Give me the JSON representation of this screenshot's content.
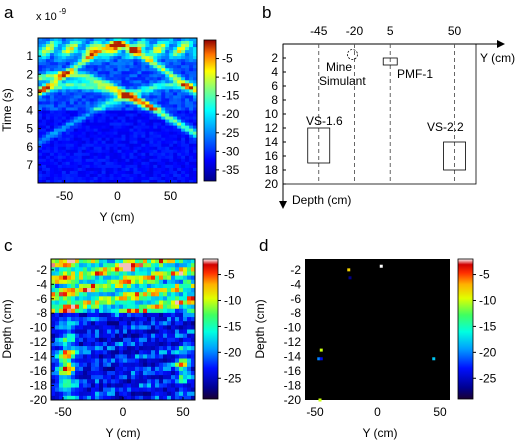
{
  "panels": {
    "a": {
      "letter": "a",
      "xlabel": "Y (cm)",
      "ylabel": "Time (s)",
      "exponent_base": "x 10",
      "exponent_power": "-9",
      "xticks": [
        "-50",
        "0",
        "50"
      ],
      "yticks": [
        "1",
        "2",
        "3",
        "4",
        "5",
        "6",
        "7"
      ],
      "colorbar_ticks": [
        "-5",
        "-10",
        "-15",
        "-20",
        "-25",
        "-30",
        "-35"
      ]
    },
    "b": {
      "letter": "b",
      "xlabel": "Y (cm)",
      "ylabel": "Depth (cm)",
      "y_positions": [
        "-45",
        "-20",
        "5",
        "50"
      ],
      "depth_ticks": [
        "2",
        "4",
        "6",
        "8",
        "10",
        "12",
        "14",
        "16",
        "18",
        "20"
      ],
      "labels": {
        "mine_line1": "Mine",
        "mine_line2": "Simulant",
        "pmf": "PMF-1",
        "vs16": "VS-1.6",
        "vs22": "VS-2.2"
      }
    },
    "c": {
      "letter": "c",
      "xlabel": "Y (cm)",
      "ylabel": "Depth (cm)",
      "xticks": [
        "-50",
        "0",
        "50"
      ],
      "yticks": [
        "-2",
        "-4",
        "-6",
        "-8",
        "-10",
        "-12",
        "-14",
        "-16",
        "-18",
        "-20"
      ],
      "colorbar_ticks": [
        "-5",
        "-10",
        "-15",
        "-20",
        "-25"
      ]
    },
    "d": {
      "letter": "d",
      "xlabel": "Y (cm)",
      "ylabel": "Depth (cm)",
      "xticks": [
        "-50",
        "0",
        "50"
      ],
      "yticks": [
        "-2",
        "-4",
        "-6",
        "-8",
        "-10",
        "-12",
        "-14",
        "-16",
        "-18",
        "-20"
      ],
      "colorbar_ticks": [
        "-5",
        "-10",
        "-15",
        "-20",
        "-25"
      ]
    }
  },
  "chart_data": [
    {
      "panel": "a",
      "type": "heatmap",
      "xlabel": "Y (cm)",
      "ylabel": "Time (s)",
      "xlim": [
        -75,
        75
      ],
      "ylim": [
        0,
        8
      ],
      "y_unit_multiplier": "x 10^-9",
      "colorbar_range": [
        -38,
        0
      ],
      "colormap": "jet",
      "features": [
        {
          "y_cm": 0,
          "time": 0.3,
          "level": -3
        },
        {
          "y_cm": -50,
          "time": 2.0,
          "level": -8
        },
        {
          "y_cm": 55,
          "time": 2.6,
          "level": -14
        },
        {
          "y_cm": -40,
          "time": 2.6,
          "level": -10
        }
      ]
    },
    {
      "panel": "b",
      "type": "table",
      "xlabel": "Y (cm)",
      "ylabel": "Depth (cm)",
      "xlim": [
        -70,
        65
      ],
      "ylim": [
        0,
        20
      ],
      "vertical_lines_y": [
        -45,
        -20,
        5,
        50
      ],
      "targets": [
        {
          "name": "Mine Simulant",
          "shape": "circle",
          "y_cm": -20,
          "depth_cm": 1.5
        },
        {
          "name": "PMF-1",
          "shape": "rect",
          "y_cm": 5,
          "depth_top": 2,
          "depth_bottom": 3
        },
        {
          "name": "VS-1.6",
          "shape": "rect",
          "y_cm": -45,
          "depth_top": 12,
          "depth_bottom": 17
        },
        {
          "name": "VS-2.2",
          "shape": "rect",
          "y_cm": 50,
          "depth_top": 14,
          "depth_bottom": 18
        }
      ]
    },
    {
      "panel": "c",
      "type": "heatmap",
      "xlabel": "Y (cm)",
      "ylabel": "Depth (cm)",
      "xlim": [
        -60,
        60
      ],
      "ylim": [
        -20,
        -0.5
      ],
      "colorbar_range": [
        -29,
        -2
      ],
      "colormap": "jet"
    },
    {
      "panel": "d",
      "type": "scatter",
      "xlabel": "Y (cm)",
      "ylabel": "Depth (cm)",
      "xlim": [
        -58,
        58
      ],
      "ylim": [
        -20,
        -0.5
      ],
      "colorbar_range": [
        -29,
        -2
      ],
      "colormap": "jet",
      "points": [
        {
          "y": 3,
          "depth": -1.5,
          "level": -2
        },
        {
          "y": -23,
          "depth": -2.0,
          "level": -8
        },
        {
          "y": -22,
          "depth": -3.1,
          "level": -27
        },
        {
          "y": -45,
          "depth": -13.1,
          "level": -10
        },
        {
          "y": -47,
          "depth": -14.3,
          "level": -20
        },
        {
          "y": -45,
          "depth": -14.3,
          "level": -24
        },
        {
          "y": 45,
          "depth": -14.3,
          "level": -18
        },
        {
          "y": -46,
          "depth": -20.0,
          "level": -10
        }
      ]
    }
  ]
}
